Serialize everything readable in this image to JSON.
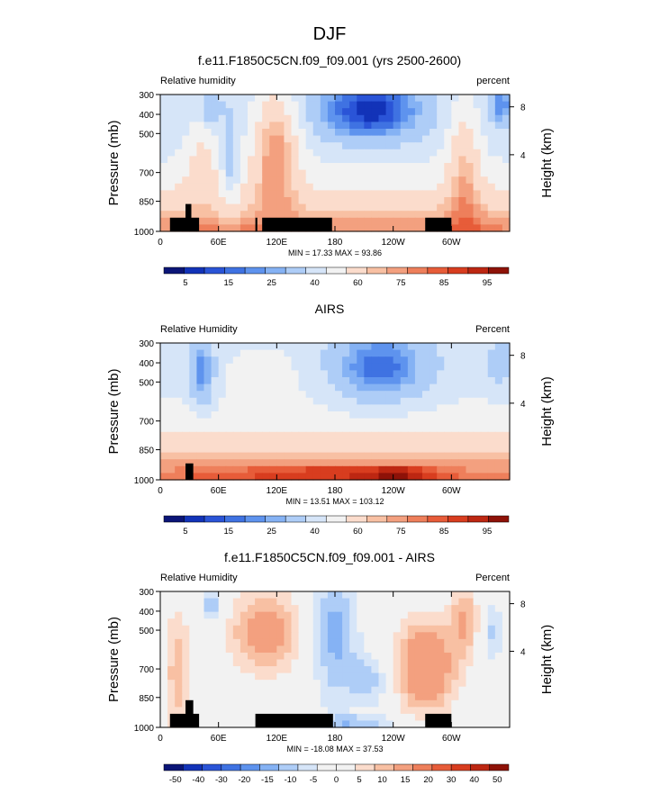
{
  "page_title": "DJF",
  "palettes": {
    "humidity": [
      "#0b1577",
      "#1233b8",
      "#2a54d7",
      "#3f72e2",
      "#5e93ee",
      "#85b2f4",
      "#aecdf7",
      "#d6e5f8",
      "#f2f2f2",
      "#fbdccc",
      "#f8c0a3",
      "#f3a07f",
      "#ee7f5b",
      "#e75c39",
      "#d83d1f",
      "#bd2712",
      "#8e1208"
    ],
    "difference": [
      "#0b1577",
      "#1233b8",
      "#2a54d7",
      "#3f72e2",
      "#5e93ee",
      "#85b2f4",
      "#aecdf7",
      "#d6e5f8",
      "#f2f2f2",
      "#f2f2f2",
      "#fbdccc",
      "#f8c0a3",
      "#f3a07f",
      "#ee7f5b",
      "#e75c39",
      "#d83d1f",
      "#bd2712",
      "#8e1208"
    ]
  },
  "chart_data": [
    {
      "type": "heatmap",
      "title": "f.e11.F1850C5CN.f09_f09.001 (yrs 2500-2600)",
      "left_label": "Relative humidity",
      "right_label": "percent",
      "ylabel": "Pressure (mb)",
      "y2label": "Height (km)",
      "x_ticks": [
        "0",
        "60E",
        "120E",
        "180",
        "120W",
        "60W"
      ],
      "y_ticks": [
        "300",
        "400",
        "500",
        "700",
        "850",
        "1000"
      ],
      "y2_ticks": [
        "8",
        "4"
      ],
      "stats": "MIN = 17.33   MAX = 93.86",
      "colorbar_labels": [
        "5",
        "15",
        "25",
        "40",
        "60",
        "75",
        "85",
        "95"
      ],
      "palette": "humidity"
    },
    {
      "type": "heatmap",
      "title": "AIRS",
      "left_label": "Relative Humidity",
      "right_label": "Percent",
      "ylabel": "Pressure (mb)",
      "y2label": "Height (km)",
      "x_ticks": [
        "0",
        "60E",
        "120E",
        "180",
        "120W",
        "60W"
      ],
      "y_ticks": [
        "300",
        "400",
        "500",
        "700",
        "850",
        "1000"
      ],
      "y2_ticks": [
        "8",
        "4"
      ],
      "stats": "MIN = 13.51   MAX = 103.12",
      "colorbar_labels": [
        "5",
        "15",
        "25",
        "40",
        "60",
        "75",
        "85",
        "95"
      ],
      "palette": "humidity"
    },
    {
      "type": "heatmap",
      "title": "f.e11.F1850C5CN.f09_f09.001 - AIRS",
      "left_label": "Relative Humidity",
      "right_label": "Percent",
      "ylabel": "Pressure (mb)",
      "y2label": "Height (km)",
      "x_ticks": [
        "0",
        "60E",
        "120E",
        "180",
        "120W",
        "60W"
      ],
      "y_ticks": [
        "300",
        "400",
        "500",
        "700",
        "850",
        "1000"
      ],
      "y2_ticks": [
        "8",
        "4"
      ],
      "stats": "MIN = -18.08   MAX = 37.53",
      "colorbar_labels": [
        "-50",
        "-40",
        "-30",
        "-20",
        "-15",
        "-10",
        "-5",
        "0",
        "5",
        "10",
        "15",
        "20",
        "30",
        "40",
        "50"
      ],
      "palette": "difference"
    }
  ]
}
